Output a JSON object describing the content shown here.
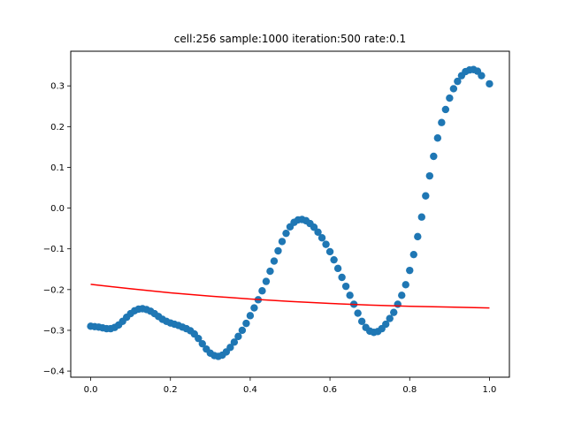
{
  "chart_data": {
    "type": "scatter",
    "title": "cell:256 sample:1000 iteration:500 rate:0.1",
    "xlabel": "",
    "ylabel": "",
    "xlim": [
      -0.05,
      1.05
    ],
    "ylim": [
      -0.415,
      0.385
    ],
    "x_ticks": [
      0.0,
      0.2,
      0.4,
      0.6,
      0.8,
      1.0
    ],
    "x_tick_labels": [
      "0.0",
      "0.2",
      "0.4",
      "0.6",
      "0.8",
      "1.0"
    ],
    "y_ticks": [
      -0.4,
      -0.3,
      -0.2,
      -0.1,
      0.0,
      0.1,
      0.2,
      0.3
    ],
    "y_tick_labels": [
      "−0.4",
      "−0.3",
      "−0.2",
      "−0.1",
      "0.0",
      "0.1",
      "0.2",
      "0.3"
    ],
    "grid": false,
    "legend": "none",
    "series": [
      {
        "kind": "scatter",
        "color": "#1f77b4",
        "points": [
          [
            0.0,
            -0.29
          ],
          [
            0.01,
            -0.291
          ],
          [
            0.02,
            -0.292
          ],
          [
            0.03,
            -0.294
          ],
          [
            0.04,
            -0.296
          ],
          [
            0.05,
            -0.296
          ],
          [
            0.06,
            -0.293
          ],
          [
            0.07,
            -0.287
          ],
          [
            0.08,
            -0.278
          ],
          [
            0.09,
            -0.268
          ],
          [
            0.1,
            -0.259
          ],
          [
            0.11,
            -0.252
          ],
          [
            0.12,
            -0.248
          ],
          [
            0.13,
            -0.247
          ],
          [
            0.14,
            -0.249
          ],
          [
            0.15,
            -0.253
          ],
          [
            0.16,
            -0.259
          ],
          [
            0.17,
            -0.266
          ],
          [
            0.18,
            -0.273
          ],
          [
            0.19,
            -0.278
          ],
          [
            0.2,
            -0.282
          ],
          [
            0.21,
            -0.285
          ],
          [
            0.22,
            -0.288
          ],
          [
            0.23,
            -0.292
          ],
          [
            0.24,
            -0.296
          ],
          [
            0.25,
            -0.301
          ],
          [
            0.26,
            -0.309
          ],
          [
            0.27,
            -0.32
          ],
          [
            0.28,
            -0.333
          ],
          [
            0.29,
            -0.346
          ],
          [
            0.3,
            -0.356
          ],
          [
            0.31,
            -0.362
          ],
          [
            0.32,
            -0.364
          ],
          [
            0.33,
            -0.361
          ],
          [
            0.34,
            -0.353
          ],
          [
            0.35,
            -0.342
          ],
          [
            0.36,
            -0.329
          ],
          [
            0.37,
            -0.315
          ],
          [
            0.38,
            -0.3
          ],
          [
            0.39,
            -0.283
          ],
          [
            0.4,
            -0.264
          ],
          [
            0.41,
            -0.245
          ],
          [
            0.42,
            -0.225
          ],
          [
            0.43,
            -0.203
          ],
          [
            0.44,
            -0.18
          ],
          [
            0.45,
            -0.155
          ],
          [
            0.46,
            -0.13
          ],
          [
            0.47,
            -0.105
          ],
          [
            0.48,
            -0.082
          ],
          [
            0.49,
            -0.062
          ],
          [
            0.5,
            -0.046
          ],
          [
            0.51,
            -0.035
          ],
          [
            0.52,
            -0.029
          ],
          [
            0.53,
            -0.028
          ],
          [
            0.54,
            -0.031
          ],
          [
            0.55,
            -0.038
          ],
          [
            0.56,
            -0.047
          ],
          [
            0.57,
            -0.059
          ],
          [
            0.58,
            -0.073
          ],
          [
            0.59,
            -0.089
          ],
          [
            0.6,
            -0.107
          ],
          [
            0.61,
            -0.127
          ],
          [
            0.62,
            -0.148
          ],
          [
            0.63,
            -0.17
          ],
          [
            0.64,
            -0.192
          ],
          [
            0.65,
            -0.214
          ],
          [
            0.66,
            -0.236
          ],
          [
            0.67,
            -0.258
          ],
          [
            0.68,
            -0.278
          ],
          [
            0.69,
            -0.293
          ],
          [
            0.7,
            -0.302
          ],
          [
            0.71,
            -0.305
          ],
          [
            0.72,
            -0.303
          ],
          [
            0.73,
            -0.296
          ],
          [
            0.74,
            -0.285
          ],
          [
            0.75,
            -0.271
          ],
          [
            0.76,
            -0.256
          ],
          [
            0.77,
            -0.236
          ],
          [
            0.78,
            -0.214
          ],
          [
            0.79,
            -0.188
          ],
          [
            0.8,
            -0.153
          ],
          [
            0.81,
            -0.114
          ],
          [
            0.82,
            -0.07
          ],
          [
            0.83,
            -0.022
          ],
          [
            0.84,
            0.03
          ],
          [
            0.85,
            0.079
          ],
          [
            0.86,
            0.127
          ],
          [
            0.87,
            0.172
          ],
          [
            0.88,
            0.21
          ],
          [
            0.89,
            0.242
          ],
          [
            0.9,
            0.27
          ],
          [
            0.91,
            0.293
          ],
          [
            0.92,
            0.311
          ],
          [
            0.93,
            0.325
          ],
          [
            0.94,
            0.335
          ],
          [
            0.95,
            0.339
          ],
          [
            0.96,
            0.34
          ],
          [
            0.97,
            0.336
          ],
          [
            0.98,
            0.325
          ],
          [
            1.0,
            0.305
          ]
        ]
      },
      {
        "kind": "line",
        "color": "#ff0000",
        "points": [
          [
            0.0,
            -0.187
          ],
          [
            0.1,
            -0.198
          ],
          [
            0.2,
            -0.208
          ],
          [
            0.3,
            -0.216
          ],
          [
            0.4,
            -0.223
          ],
          [
            0.5,
            -0.229
          ],
          [
            0.6,
            -0.234
          ],
          [
            0.7,
            -0.238
          ],
          [
            0.8,
            -0.241
          ],
          [
            0.9,
            -0.243
          ],
          [
            1.0,
            -0.245
          ]
        ]
      }
    ]
  }
}
